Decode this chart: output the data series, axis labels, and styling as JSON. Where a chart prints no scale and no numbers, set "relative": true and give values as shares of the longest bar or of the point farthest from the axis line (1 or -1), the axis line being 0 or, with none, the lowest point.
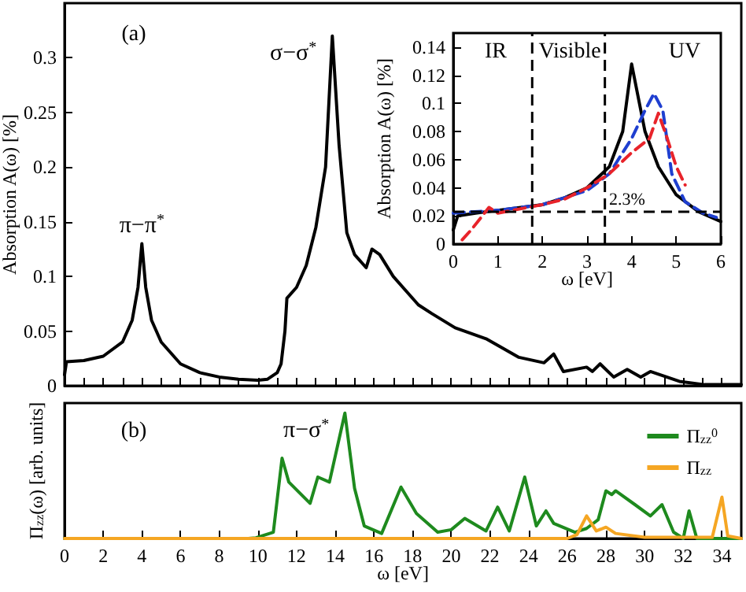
{
  "chart_data": [
    {
      "type": "line",
      "ylabel": "Absorption A(ω) [%]",
      "annotations": [
        "(a)",
        {
          "text": "π−π$^{*}$",
          "x": 4,
          "y": 0.13
        },
        {
          "text": "σ−σ$^{*}$",
          "x": 13.85,
          "y": 0.32
        }
      ],
      "xlim": [
        0,
        35
      ],
      "xticks": [
        0,
        1,
        2,
        3,
        4,
        5,
        6,
        7,
        8,
        9,
        10,
        11,
        12,
        13,
        14,
        15,
        16,
        17,
        18,
        19,
        20,
        21,
        22,
        23,
        24,
        25,
        26,
        27,
        28,
        29,
        30,
        31,
        32,
        33,
        34
      ],
      "ylim": [
        0,
        0.35
      ],
      "yticks": [
        0,
        0.05,
        0.1,
        0.15,
        0.2,
        0.25,
        0.3
      ],
      "tick_labels": "y",
      "series": [
        {
          "color": "#000000",
          "x": [
            0,
            0.1,
            1,
            2,
            3,
            3.5,
            3.8,
            4,
            4.2,
            4.5,
            5,
            6,
            7,
            8,
            9,
            10,
            10.5,
            11,
            11.2,
            11.4,
            11.5,
            12,
            12.5,
            13,
            13.5,
            13.85,
            14.2,
            14.6,
            15,
            15.6,
            15.9,
            16.3,
            17,
            18.3,
            19,
            20.2,
            21,
            21.8,
            22.5,
            23.5,
            24.8,
            25.3,
            25.8,
            27,
            27.3,
            27.7,
            28.4,
            29.1,
            29.8,
            30.3,
            31.8,
            33.1,
            35
          ],
          "values": [
            0.01,
            0.022,
            0.023,
            0.027,
            0.04,
            0.06,
            0.09,
            0.13,
            0.09,
            0.06,
            0.04,
            0.02,
            0.012,
            0.008,
            0.006,
            0.005,
            0.006,
            0.012,
            0.02,
            0.05,
            0.08,
            0.09,
            0.11,
            0.145,
            0.2,
            0.32,
            0.22,
            0.14,
            0.12,
            0.108,
            0.125,
            0.12,
            0.1,
            0.074,
            0.066,
            0.053,
            0.048,
            0.043,
            0.036,
            0.026,
            0.021,
            0.029,
            0.013,
            0.017,
            0.013,
            0.02,
            0.008,
            0.015,
            0.008,
            0.013,
            0.004,
            0.001,
            0.001
          ]
        }
      ]
    },
    {
      "type": "line",
      "xlabel": "ω [eV]",
      "ylabel": "Absorption A(ω) [%]",
      "annotations": [
        "IR",
        "Visible",
        "UV"
      ],
      "xlim": [
        0,
        6
      ],
      "xticks": [
        0,
        1,
        2,
        3,
        4,
        5,
        6
      ],
      "ylim": [
        0,
        0.15
      ],
      "yticks": [
        0,
        0.02,
        0.04,
        0.06,
        0.08,
        0.1,
        0.12,
        0.14
      ],
      "ref_lines": [
        {
          "axis": "x",
          "value": 1.77,
          "color": "#000000",
          "line_style": "dashed"
        },
        {
          "axis": "x",
          "value": 3.4,
          "color": "#000000",
          "line_style": "dashed"
        },
        {
          "axis": "y",
          "value": 0.023,
          "label": "2.3%",
          "color": "#000000",
          "line_style": "dashed"
        }
      ],
      "series": [
        {
          "color": "#000000",
          "line_style": "solid",
          "x": [
            0,
            0.1,
            0.5,
            1,
            2,
            2.5,
            3,
            3.5,
            3.8,
            4,
            4.3,
            4.6,
            5,
            5.5,
            6
          ],
          "values": [
            0.01,
            0.02,
            0.022,
            0.024,
            0.028,
            0.033,
            0.04,
            0.055,
            0.08,
            0.128,
            0.08,
            0.055,
            0.035,
            0.023,
            0.016
          ]
        },
        {
          "color": "#1f3fd0",
          "line_style": "dashed",
          "x": [
            0,
            1,
            2,
            3,
            3.5,
            4,
            4.3,
            4.5,
            4.7,
            4.9,
            5.2,
            5.6,
            5.9
          ],
          "values": [
            0.022,
            0.024,
            0.028,
            0.038,
            0.05,
            0.075,
            0.095,
            0.107,
            0.095,
            0.05,
            0.03,
            0.022,
            0.019
          ]
        },
        {
          "color": "#e8232a",
          "line_style": "dashed",
          "x": [
            0.2,
            0.4,
            0.7,
            0.8,
            1,
            2,
            2.5,
            3,
            3.5,
            4,
            4.4,
            4.6,
            4.8,
            5,
            5.2
          ],
          "values": [
            0.003,
            0.01,
            0.022,
            0.026,
            0.022,
            0.028,
            0.032,
            0.04,
            0.05,
            0.065,
            0.075,
            0.093,
            0.075,
            0.055,
            0.042
          ]
        }
      ]
    },
    {
      "type": "line",
      "relative": true,
      "xlabel": "ω [eV]",
      "ylabel": "Π$_{zz}$(ω) [arb. units]",
      "annotations": [
        "(b)",
        {
          "text": "π−σ$^{*}$",
          "x": 14.5,
          "y": 1
        }
      ],
      "legend": "top right",
      "xlim": [
        0,
        35
      ],
      "xticks": [
        0,
        2,
        4,
        6,
        8,
        10,
        12,
        14,
        16,
        18,
        20,
        22,
        24,
        26,
        28,
        30,
        32,
        34
      ],
      "series": [
        {
          "name": "Π$_{zz}$$^{0}$",
          "color": "#1e8a1e",
          "x": [
            0,
            9.5,
            9.9,
            10.8,
            11.25,
            11.6,
            12.7,
            13.1,
            13.7,
            14.5,
            15,
            15.5,
            16.4,
            17.4,
            18.2,
            19.3,
            20,
            20.7,
            21.8,
            22.4,
            23,
            23.8,
            24.4,
            24.9,
            25.3,
            26.4,
            27,
            27.6,
            28,
            28.3,
            28.5,
            29.5,
            30.3,
            30.9,
            31.5,
            32,
            32.3,
            32.7,
            35
          ],
          "values": [
            0,
            0,
            0.005,
            0.05,
            0.64,
            0.45,
            0.28,
            0.49,
            0.45,
            1,
            0.4,
            0.1,
            0.04,
            0.41,
            0.2,
            0.05,
            0.07,
            0.16,
            0.06,
            0.25,
            0.06,
            0.49,
            0.1,
            0.22,
            0.12,
            0.05,
            0.08,
            0.15,
            0.38,
            0.35,
            0.38,
            0.27,
            0.18,
            0.27,
            0.05,
            0,
            0.22,
            0,
            0
          ]
        },
        {
          "name": "Π$_{zz}$",
          "color": "#f5a623",
          "x": [
            0,
            26,
            26.5,
            27,
            27.5,
            28,
            28.5,
            30,
            33.5,
            34,
            34.3,
            35
          ],
          "values": [
            0,
            0,
            0.03,
            0.18,
            0.06,
            0.09,
            0.04,
            0.01,
            0.01,
            0.33,
            0.02,
            0
          ]
        }
      ]
    }
  ]
}
